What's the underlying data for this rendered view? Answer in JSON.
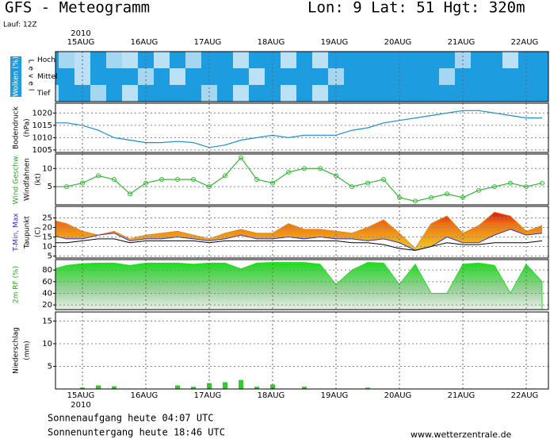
{
  "header": {
    "title": "GFS - Meteogramm",
    "location": "Lon: 9 Lat: 51 Hgt: 320m",
    "run": "Lauf: 12Z"
  },
  "footer": {
    "sunrise": "Sonnenaufgang heute 04:07 UTC",
    "sunset": "Sonnenuntergang heute 18:46 UTC",
    "source": "www.wetterzentrale.de"
  },
  "chart_data": [
    {
      "type": "cloud",
      "ylabel": [
        "Wolken (%)"
      ],
      "level_label": "Level",
      "year": "2010",
      "categories": [
        null,
        null,
        "15AUG",
        null,
        null,
        null,
        "16AUG",
        null,
        null,
        null,
        "17AUG",
        null,
        null,
        null,
        "18AUG",
        null,
        null,
        null,
        "19AUG",
        null,
        null,
        null,
        "20AUG",
        null,
        null,
        null,
        "21AUG",
        null,
        null,
        null,
        "22AUG",
        null
      ],
      "series": [
        {
          "name": "Hoch",
          "color": "#1e9ce0",
          "values": [
            100,
            40,
            30,
            100,
            40,
            30,
            100,
            30,
            100,
            40,
            100,
            100,
            30,
            100,
            100,
            30,
            100,
            30,
            100,
            100,
            100,
            100,
            100,
            100,
            100,
            100,
            40,
            100,
            100,
            30,
            100,
            100
          ]
        },
        {
          "name": "Mittel",
          "color": "#1e9ce0",
          "values": [
            100,
            100,
            30,
            100,
            100,
            100,
            40,
            100,
            30,
            100,
            100,
            100,
            100,
            30,
            100,
            100,
            100,
            100,
            40,
            100,
            100,
            100,
            100,
            100,
            100,
            40,
            100,
            100,
            100,
            100,
            100,
            100
          ]
        },
        {
          "name": "Tief",
          "color": "#1e9ce0",
          "values": [
            30,
            100,
            100,
            40,
            100,
            30,
            100,
            100,
            100,
            100,
            40,
            100,
            30,
            100,
            100,
            30,
            100,
            30,
            100,
            100,
            100,
            100,
            100,
            100,
            100,
            100,
            100,
            100,
            100,
            100,
            100,
            100
          ]
        }
      ]
    },
    {
      "type": "line",
      "ylabel": [
        "Bodendruck",
        "(hPa)"
      ],
      "ylim": [
        1004,
        1024
      ],
      "yticks": [
        1005,
        1010,
        1015,
        1020
      ],
      "grid": true,
      "categories": [
        null,
        null,
        "15AUG",
        null,
        null,
        null,
        "16AUG",
        null,
        null,
        null,
        "17AUG",
        null,
        null,
        null,
        "18AUG",
        null,
        null,
        null,
        "19AUG",
        null,
        null,
        null,
        "20AUG",
        null,
        null,
        null,
        "21AUG",
        null,
        null,
        null,
        "22AUG",
        null
      ],
      "series": [
        {
          "name": "Bodendruck",
          "color": "#1a8fd0",
          "values": [
            1016,
            1016,
            1015,
            1013,
            1010,
            1009,
            1008,
            1008,
            1008.5,
            1008,
            1006,
            1007,
            1009,
            1010,
            1011,
            1010,
            1011,
            1011,
            1011,
            1013,
            1014,
            1016,
            1017,
            1018,
            1019,
            1020,
            1021,
            1021,
            1020,
            1019,
            1018,
            1018
          ]
        }
      ]
    },
    {
      "type": "line",
      "ylabel": [
        "Wind Geschw.",
        "Windfahnen",
        "(kt)"
      ],
      "ylim": [
        0,
        14
      ],
      "yticks": [
        5,
        10
      ],
      "grid": true,
      "categories": [
        null,
        null,
        "15AUG",
        null,
        null,
        null,
        "16AUG",
        null,
        null,
        null,
        "17AUG",
        null,
        null,
        null,
        "18AUG",
        null,
        null,
        null,
        "19AUG",
        null,
        null,
        null,
        "20AUG",
        null,
        null,
        null,
        "21AUG",
        null,
        null,
        null,
        "22AUG",
        null
      ],
      "series": [
        {
          "name": "Wind Geschw.",
          "color": "#33bb33",
          "markers": true,
          "values": [
            5,
            5,
            6,
            8,
            7,
            3,
            6,
            7,
            7,
            7,
            5,
            8,
            13,
            7,
            6,
            9,
            10,
            10,
            8,
            5,
            6,
            7,
            2,
            1,
            2,
            3,
            2,
            4,
            5,
            6,
            5,
            6
          ]
        }
      ]
    },
    {
      "type": "range",
      "ylabel": [
        "T-Min, Max",
        "Taupunkt",
        "(C)"
      ],
      "ylim": [
        4,
        31
      ],
      "yticks": [
        5,
        10,
        15,
        20,
        25
      ],
      "grid": true,
      "categories": [
        null,
        null,
        "15AUG",
        null,
        null,
        null,
        "16AUG",
        null,
        null,
        null,
        "17AUG",
        null,
        null,
        null,
        "18AUG",
        null,
        null,
        null,
        "19AUG",
        null,
        null,
        null,
        "20AUG",
        null,
        null,
        null,
        "21AUG",
        null,
        null,
        null,
        "22AUG",
        null
      ],
      "series": [
        {
          "name": "Max",
          "color": "#f08a1c",
          "values": [
            24,
            22,
            18,
            16,
            18,
            14,
            16,
            17,
            18,
            16,
            14,
            17,
            19,
            17,
            17,
            22,
            19,
            19,
            18,
            17,
            20,
            24,
            17,
            9,
            22,
            26,
            17,
            21,
            28,
            26,
            18,
            21
          ]
        },
        {
          "name": "Min",
          "color": "#3333cc",
          "values": [
            16,
            14,
            14,
            16,
            17,
            13,
            14,
            14,
            15,
            14,
            13,
            14,
            16,
            14,
            14,
            15,
            14,
            15,
            14,
            14,
            13,
            14,
            12,
            8,
            10,
            15,
            12,
            12,
            16,
            19,
            16,
            17
          ]
        },
        {
          "name": "Taupunkt",
          "color": "#000000",
          "values": [
            12,
            12,
            13,
            14,
            14,
            12,
            13,
            13,
            13,
            13,
            12,
            13,
            13,
            13,
            13,
            13,
            13,
            13,
            13,
            12,
            12,
            11,
            9,
            8,
            10,
            12,
            11,
            11,
            12,
            12,
            12,
            13
          ]
        }
      ]
    },
    {
      "type": "area",
      "ylabel": [
        "2m RF (%)"
      ],
      "ylim": [
        12,
        98
      ],
      "yticks": [
        20,
        40,
        60,
        80
      ],
      "grid": true,
      "categories": [
        null,
        null,
        "15AUG",
        null,
        null,
        null,
        "16AUG",
        null,
        null,
        null,
        "17AUG",
        null,
        null,
        null,
        "18AUG",
        null,
        null,
        null,
        "19AUG",
        null,
        null,
        null,
        "20AUG",
        null,
        null,
        null,
        "21AUG",
        null,
        null,
        null,
        "22AUG",
        null
      ],
      "series": [
        {
          "name": "2m RF (%)",
          "color": "#22dd22",
          "values": [
            80,
            88,
            91,
            92,
            92,
            88,
            92,
            92,
            92,
            90,
            92,
            92,
            82,
            92,
            93,
            93,
            93,
            90,
            55,
            80,
            93,
            92,
            55,
            90,
            40,
            40,
            90,
            92,
            88,
            40,
            90,
            60
          ]
        }
      ]
    },
    {
      "type": "bar",
      "ylabel": [
        "Niederschlag",
        "(mm)"
      ],
      "ylim": [
        0,
        17
      ],
      "yticks": [
        5,
        10,
        15
      ],
      "grid": true,
      "year": "2010",
      "categories": [
        null,
        null,
        "15AUG",
        null,
        null,
        null,
        "16AUG",
        null,
        null,
        null,
        "17AUG",
        null,
        null,
        null,
        "18AUG",
        null,
        null,
        null,
        "19AUG",
        null,
        null,
        null,
        "20AUG",
        null,
        null,
        null,
        "21AUG",
        null,
        null,
        null,
        "22AUG",
        null
      ],
      "series": [
        {
          "name": "Niederschlag",
          "color": "#33cc33",
          "values": [
            0,
            0,
            0.3,
            0.8,
            0.6,
            0,
            0,
            0,
            0.8,
            0.5,
            1.3,
            1.5,
            2,
            0.5,
            1,
            0,
            0.5,
            0,
            0,
            0,
            0.3,
            0,
            0,
            0,
            0,
            0,
            0,
            0,
            0,
            0,
            0,
            0
          ]
        }
      ]
    }
  ]
}
